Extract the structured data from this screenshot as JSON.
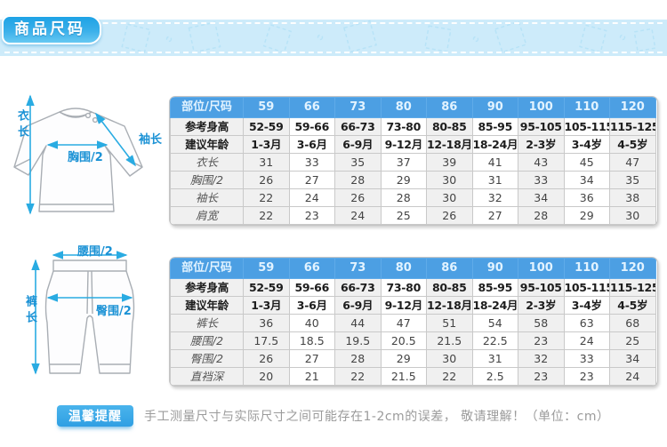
{
  "banner": {
    "title": "商品尺码"
  },
  "figure_top": {
    "length_label": "衣长",
    "sleeve_label": "袖长",
    "chest_label": "胸围/2"
  },
  "figure_pants": {
    "length_label": "裤长",
    "waist_label": "腰围/2",
    "hip_label": "臀围/2"
  },
  "table_top": {
    "header": [
      "部位/尺码",
      "59",
      "66",
      "73",
      "80",
      "86",
      "90",
      "100",
      "110",
      "120"
    ],
    "rows": [
      {
        "label": "参考身高",
        "style": "info",
        "values": [
          "52-59",
          "59-66",
          "66-73",
          "73-80",
          "80-85",
          "85-95",
          "95-105",
          "105-115",
          "115-125"
        ]
      },
      {
        "label": "建议年龄",
        "style": "info",
        "values": [
          "1-3月",
          "3-6月",
          "6-9月",
          "9-12月",
          "12-18月",
          "18-24月",
          "2-3岁",
          "3-4岁",
          "4-5岁"
        ]
      },
      {
        "label": "衣长",
        "style": "measure",
        "values": [
          "31",
          "33",
          "35",
          "37",
          "39",
          "41",
          "43",
          "45",
          "47"
        ]
      },
      {
        "label": "胸围/2",
        "style": "measure",
        "values": [
          "26",
          "27",
          "28",
          "29",
          "30",
          "31",
          "33",
          "34",
          "35"
        ]
      },
      {
        "label": "袖长",
        "style": "measure",
        "values": [
          "22",
          "24",
          "26",
          "28",
          "30",
          "32",
          "34",
          "36",
          "38"
        ]
      },
      {
        "label": "肩宽",
        "style": "measure",
        "values": [
          "22",
          "23",
          "24",
          "25",
          "26",
          "27",
          "28",
          "29",
          "30"
        ]
      }
    ]
  },
  "table_pants": {
    "header": [
      "部位/尺码",
      "59",
      "66",
      "73",
      "80",
      "86",
      "90",
      "100",
      "110",
      "120"
    ],
    "rows": [
      {
        "label": "参考身高",
        "style": "info",
        "values": [
          "52-59",
          "59-66",
          "66-73",
          "73-80",
          "80-85",
          "85-95",
          "95-105",
          "105-115",
          "115-125"
        ]
      },
      {
        "label": "建议年龄",
        "style": "info",
        "values": [
          "1-3月",
          "3-6月",
          "6-9月",
          "9-12月",
          "12-18月",
          "18-24月",
          "2-3岁",
          "3-4岁",
          "4-5岁"
        ]
      },
      {
        "label": "裤长",
        "style": "measure",
        "values": [
          "36",
          "40",
          "44",
          "47",
          "51",
          "54",
          "58",
          "63",
          "68"
        ]
      },
      {
        "label": "腰围/2",
        "style": "measure",
        "values": [
          "17.5",
          "18.5",
          "19.5",
          "20.5",
          "21.5",
          "22.5",
          "23",
          "24",
          "25"
        ]
      },
      {
        "label": "臀围/2",
        "style": "measure",
        "values": [
          "26",
          "27",
          "28",
          "29",
          "30",
          "31",
          "32",
          "33",
          "34"
        ]
      },
      {
        "label": "直裆深",
        "style": "measure",
        "values": [
          "20",
          "21",
          "22",
          "21.5",
          "22",
          "2.5",
          "23",
          "23",
          "24"
        ]
      }
    ]
  },
  "footer": {
    "badge": "温馨提醒",
    "note": "手工测量尺寸与实际尺寸之间可能存在1-2cm的误差， 敬请理解！（单位：cm）"
  },
  "colors": {
    "table_header_blue": "#4c9fe3",
    "banner_blue": "#cdebfa",
    "badge_blue": "#2f9fe3",
    "arrow_cyan": "#29abe2",
    "label_blue": "#1b92d5",
    "band_gray": "#f0f0f0"
  }
}
